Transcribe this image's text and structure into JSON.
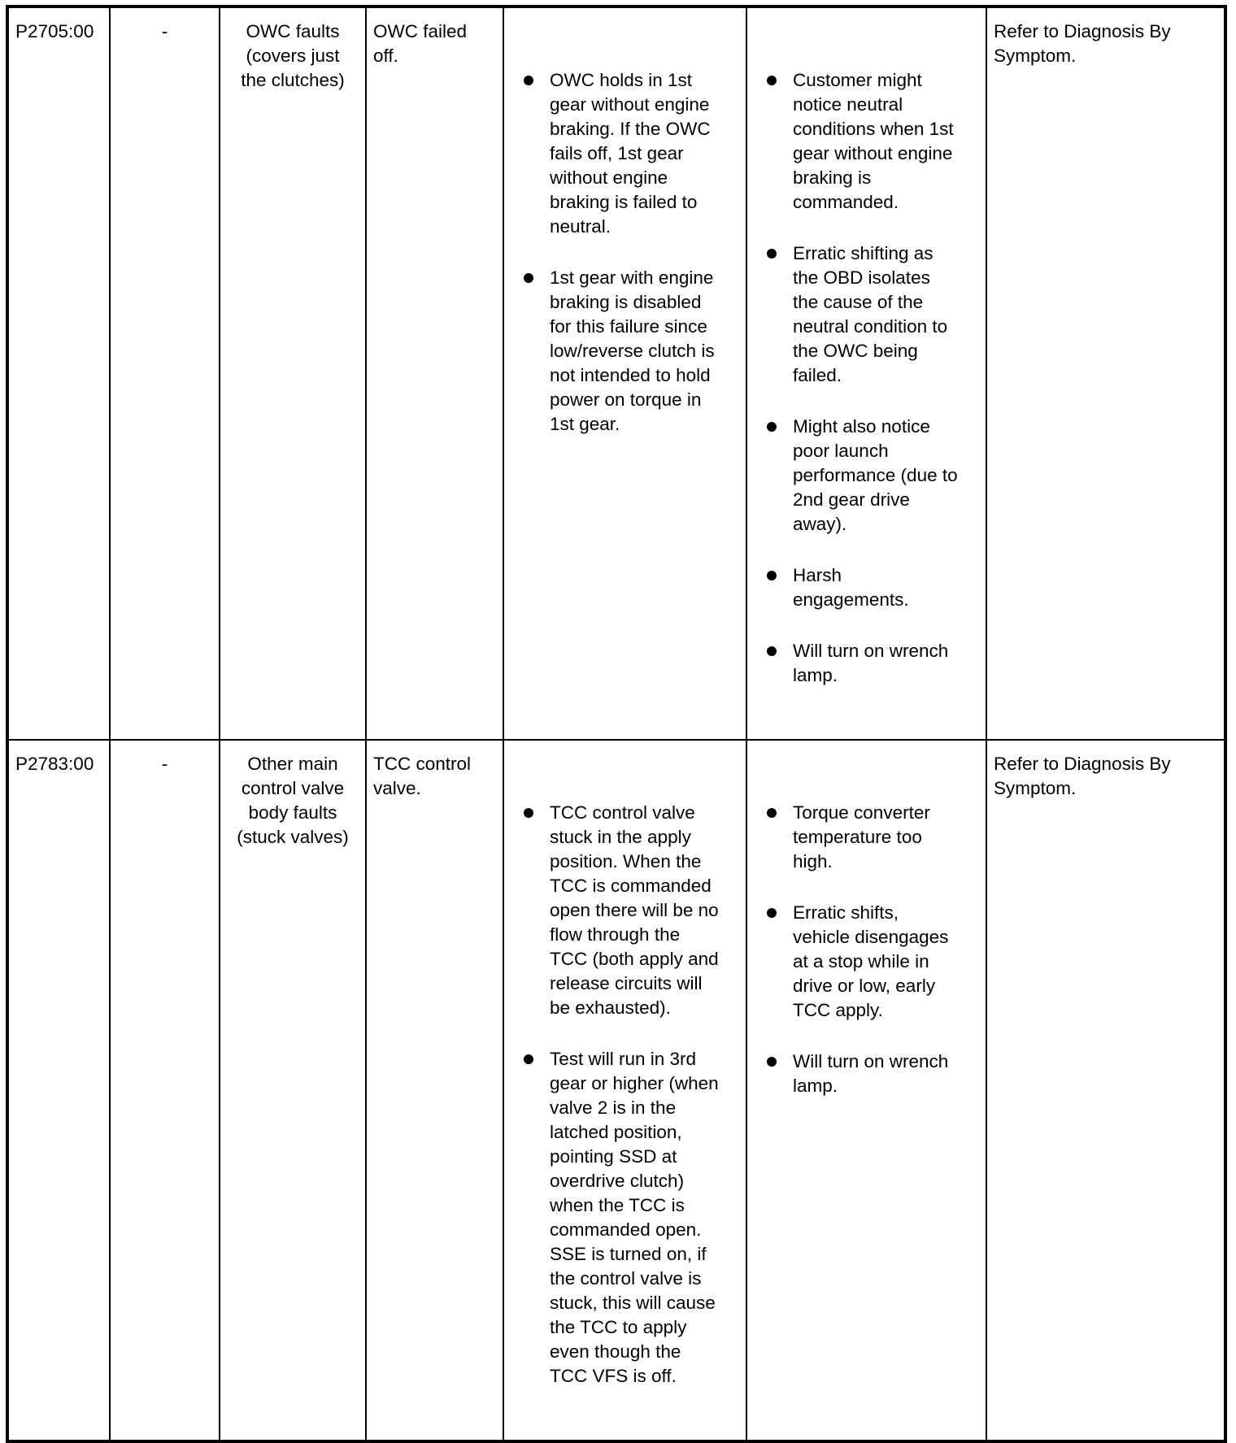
{
  "rows": [
    {
      "code": "P2705:00",
      "sub": "-",
      "category": "OWC faults\n(covers just\nthe clutches)",
      "failure": "OWC failed\noff.",
      "action": [
        "OWC holds in 1st\ngear without engine\nbraking. If the OWC\nfails off, 1st gear\nwithout engine\nbraking is failed to\nneutral.",
        "1st gear with engine\nbraking is disabled\nfor this failure since\nlow/reverse clutch is\nnot intended to hold\npower on torque in\n1st gear."
      ],
      "symptoms": [
        "Customer might\nnotice neutral\nconditions when 1st\ngear without engine\nbraking is\ncommanded.",
        "Erratic shifting as\nthe OBD isolates\nthe cause of the\nneutral condition to\nthe OWC being\nfailed.",
        "Might also notice\npoor launch\nperformance (due to\n2nd gear drive\naway).",
        "Harsh\nengagements.",
        "Will turn on wrench\nlamp."
      ],
      "service": "Refer to Diagnosis By\nSymptom."
    },
    {
      "code": "P2783:00",
      "sub": "-",
      "category": "Other main\ncontrol valve\nbody faults\n(stuck valves)",
      "failure": "TCC control\nvalve.",
      "action": [
        "TCC control valve\nstuck in the apply\nposition. When the\nTCC is commanded\nopen there will be no\nflow through the\nTCC (both apply and\nrelease circuits will\nbe exhausted).",
        "Test will run in 3rd\ngear or higher (when\nvalve 2 is in the\nlatched position,\npointing SSD at\noverdrive clutch)\nwhen the TCC is\ncommanded open.\nSSE is turned on, if\nthe control valve is\nstuck, this will cause\nthe TCC to apply\neven though the\nTCC VFS is off."
      ],
      "symptoms": [
        "Torque converter\ntemperature too\nhigh.",
        "Erratic shifts,\nvehicle disengages\nat a stop while in\ndrive or low, early\nTCC apply.",
        "Will turn on wrench\nlamp."
      ],
      "service": "Refer to Diagnosis By\nSymptom."
    }
  ]
}
